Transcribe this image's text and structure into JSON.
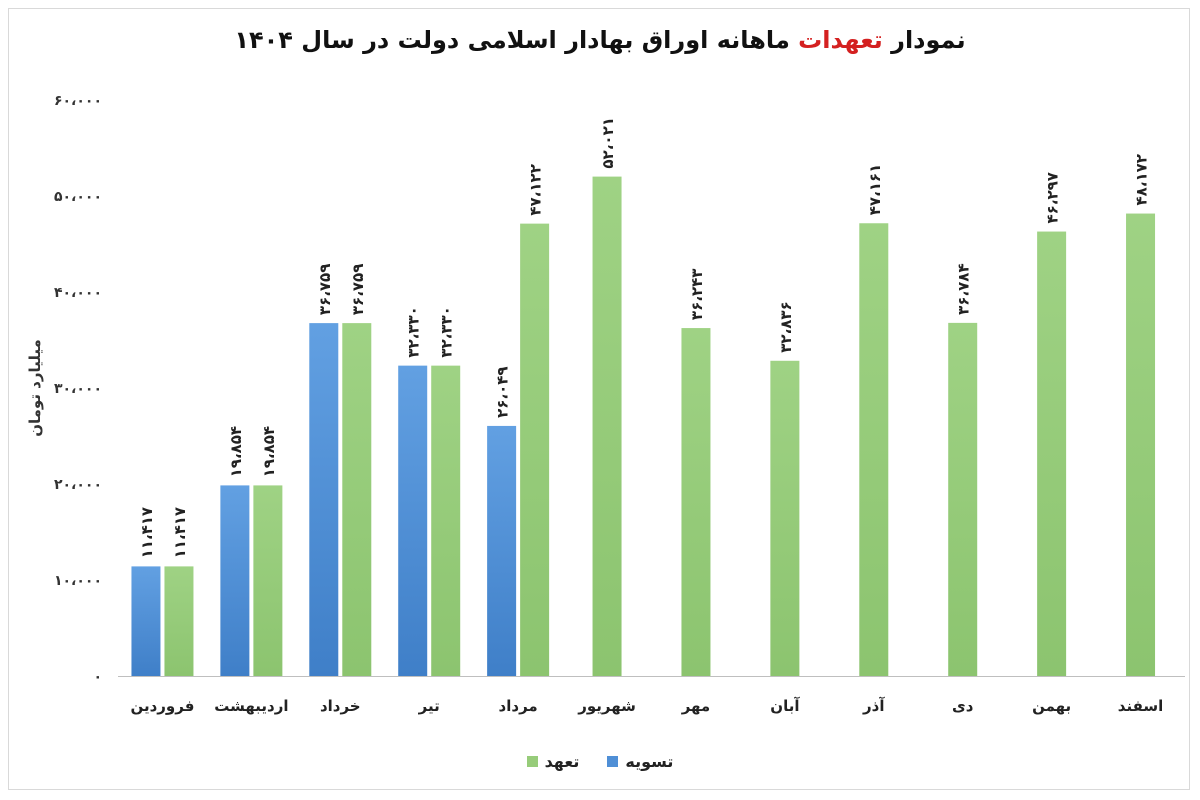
{
  "title": {
    "prefix": "نمودار",
    "highlight": "تعهدات",
    "suffix": "ماهانه اوراق بهادار اسلامی دولت در سال ۱۴۰۴"
  },
  "colors": {
    "settlement": "#4f8fd6",
    "commitment": "#97cc7a",
    "highlight": "#d42020"
  },
  "chart_data": {
    "type": "bar",
    "title": "نمودار تعهدات ماهانه اوراق بهادار اسلامی دولت در سال ۱۴۰۴",
    "ylabel": "میلیارد تومان",
    "xlabel": "",
    "ylim": [
      0,
      60000
    ],
    "yticks": [
      0,
      10000,
      20000,
      30000,
      40000,
      50000,
      60000
    ],
    "ytick_labels": [
      "۰",
      "۱۰،۰۰۰",
      "۲۰،۰۰۰",
      "۳۰،۰۰۰",
      "۴۰،۰۰۰",
      "۵۰،۰۰۰",
      "۶۰،۰۰۰"
    ],
    "grid": false,
    "legend_position": "bottom",
    "categories": [
      "فروردین",
      "اردیبهشت",
      "خرداد",
      "تیر",
      "مرداد",
      "شهریور",
      "مهر",
      "آبان",
      "آذر",
      "دی",
      "بهمن",
      "اسفند"
    ],
    "series": [
      {
        "name": "تسویه",
        "values": [
          11417,
          19854,
          36759,
          32330,
          26049,
          null,
          null,
          null,
          null,
          null,
          null,
          null
        ],
        "labels": [
          "۱۱،۴۱۷",
          "۱۹،۸۵۴",
          "۳۶،۷۵۹",
          "۳۲،۳۳۰",
          "۲۶،۰۴۹",
          "",
          "",
          "",
          "",
          "",
          "",
          ""
        ]
      },
      {
        "name": "تعهد",
        "values": [
          11417,
          19854,
          36759,
          32330,
          47122,
          52021,
          36243,
          32836,
          47161,
          36784,
          46297,
          48172
        ],
        "labels": [
          "۱۱،۴۱۷",
          "۱۹،۸۵۴",
          "۳۶،۷۵۹",
          "۳۲،۳۳۰",
          "۴۷،۱۲۲",
          "۵۲،۰۲۱",
          "۳۶،۲۴۳",
          "۳۲،۸۳۶",
          "۴۷،۱۶۱",
          "۳۶،۷۸۴",
          "۴۶،۲۹۷",
          "۴۸،۱۷۲"
        ]
      }
    ]
  },
  "legend": {
    "settlement_label": "تسویه",
    "commitment_label": "تعهد"
  }
}
